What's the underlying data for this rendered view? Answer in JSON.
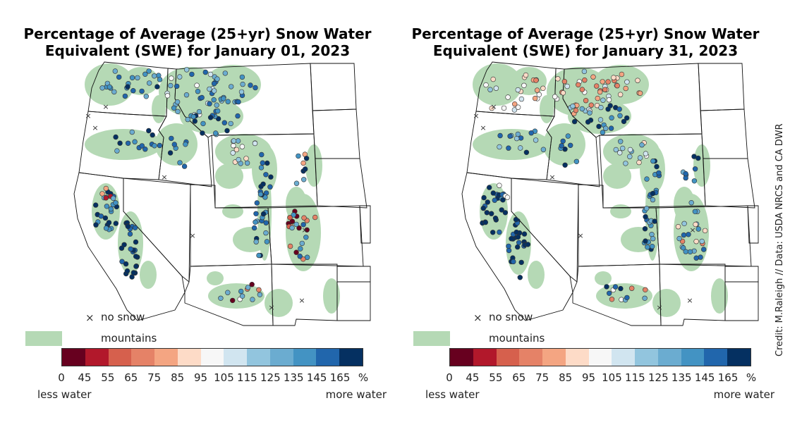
{
  "panels": [
    {
      "title_line1": "Percentage of Average (25+yr) Snow Water",
      "title_line2": "Equivalent (SWE) for January 01, 2023",
      "date": "January 01, 2023"
    },
    {
      "title_line1": "Percentage of Average (25+yr) Snow Water",
      "title_line2": "Equivalent (SWE) for January 31, 2023",
      "date": "January 31, 2023"
    }
  ],
  "legend": {
    "no_snow_symbol": "×",
    "no_snow_label": "no snow",
    "mountains_label": "mountains",
    "mountains_color": "#b5d9b5"
  },
  "colorbar": {
    "ticks": [
      "0",
      "45",
      "55",
      "65",
      "75",
      "85",
      "95",
      "105",
      "115",
      "125",
      "135",
      "145",
      "165"
    ],
    "unit": "%",
    "low_label": "less water",
    "high_label": "more water",
    "colors": [
      "#67001f",
      "#b2182b",
      "#d6604d",
      "#e58267",
      "#f4a582",
      "#fddbc7",
      "#f7f7f7",
      "#d1e5f0",
      "#92c5de",
      "#6bacd0",
      "#4393c3",
      "#2166ac",
      "#053061"
    ]
  },
  "credit": "Credit: M.Raleigh // Data: USDA NRCS and CA DWR"
}
